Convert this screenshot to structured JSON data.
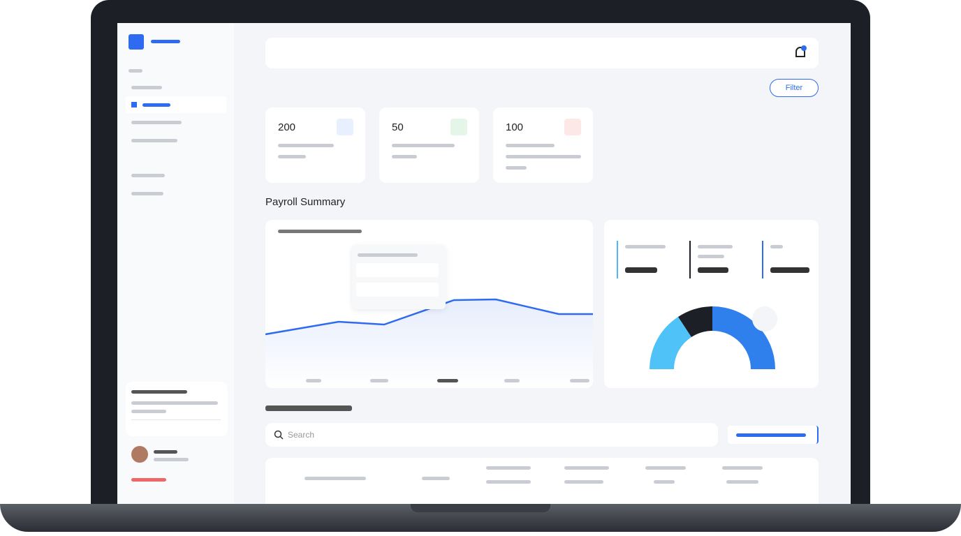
{
  "cards": [
    {
      "value": "200"
    },
    {
      "value": "50"
    },
    {
      "value": "100"
    }
  ],
  "filter": "Filter",
  "section_title": "Payroll Summary",
  "search_placeholder": "Search"
}
